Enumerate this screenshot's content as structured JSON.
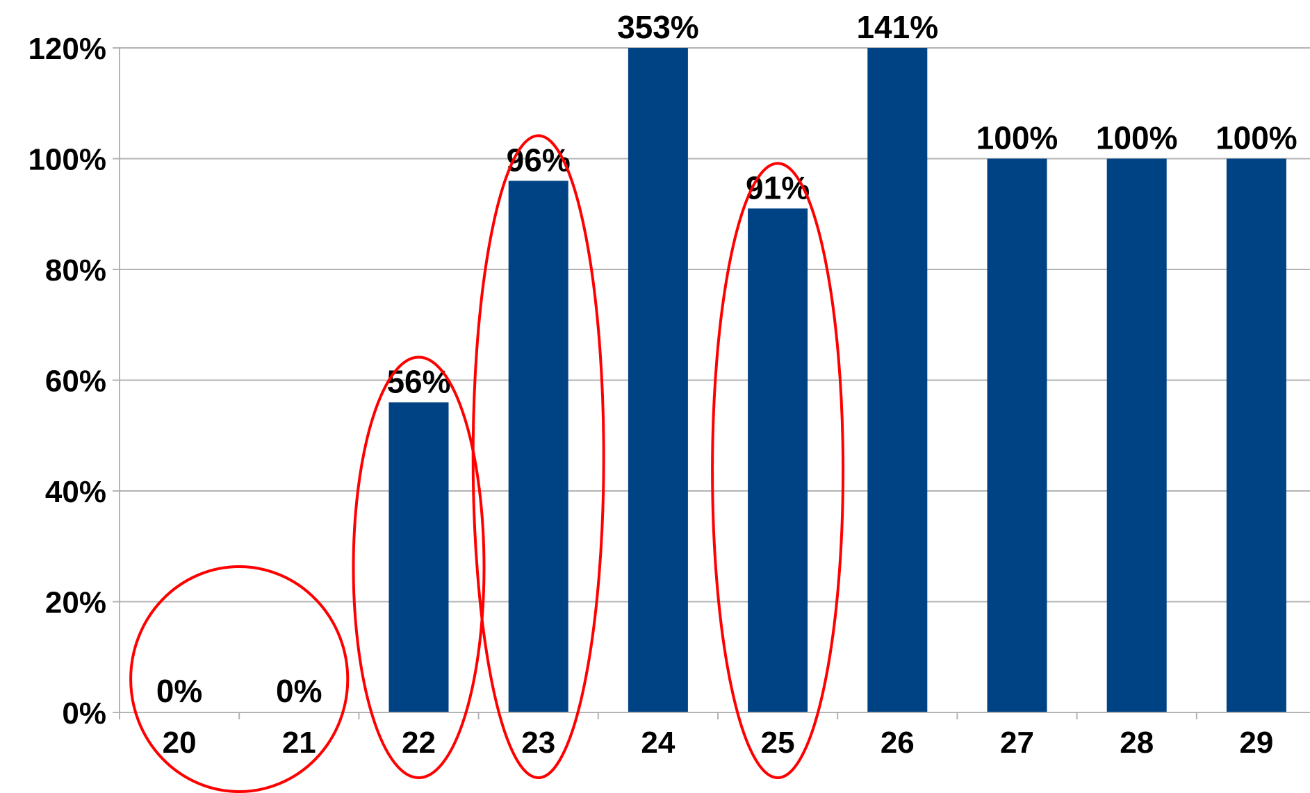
{
  "chart_data": {
    "type": "bar",
    "categories": [
      "20",
      "21",
      "22",
      "23",
      "24",
      "25",
      "26",
      "27",
      "28",
      "29"
    ],
    "values": [
      0,
      0,
      56,
      96,
      353,
      91,
      141,
      100,
      100,
      100
    ],
    "data_labels": [
      "0%",
      "0%",
      "56%",
      "96%",
      "353%",
      "91%",
      "141%",
      "100%",
      "100%",
      "100%"
    ],
    "y_ticks": [
      "0%",
      "20%",
      "40%",
      "60%",
      "80%",
      "100%",
      "120%"
    ],
    "ylim": [
      0,
      120
    ],
    "bars_clipped_at_axis_max": true,
    "grid": true,
    "legend": "none",
    "title": "",
    "xlabel": "",
    "ylabel": "",
    "highlight_ellipses": [
      [
        "20",
        "21"
      ],
      [
        "22"
      ],
      [
        "23"
      ],
      [
        "25"
      ]
    ]
  },
  "colors": {
    "bar": "#004385",
    "gridline": "#b3b3b3",
    "axis": "#b3b3b3",
    "highlight": "#ff0000"
  }
}
